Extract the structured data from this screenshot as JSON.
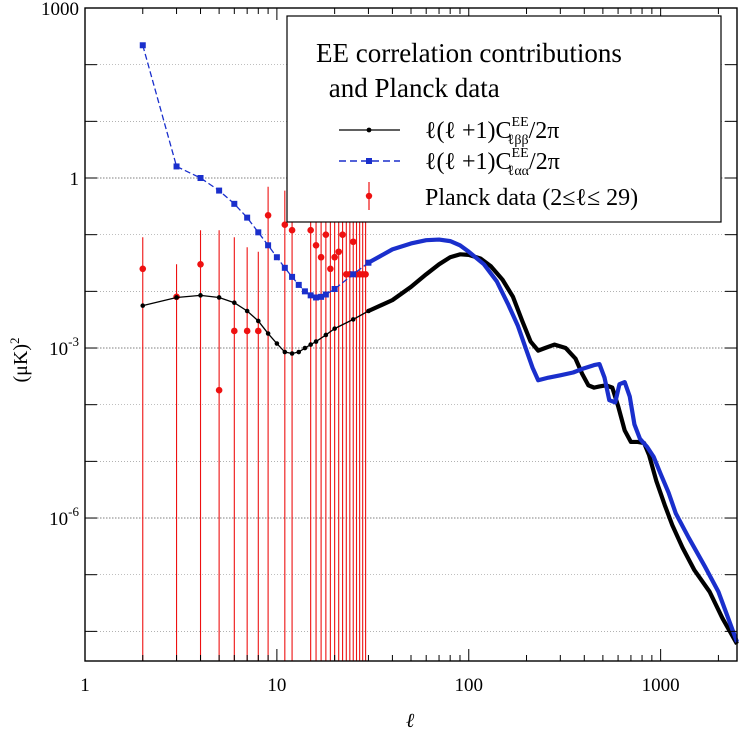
{
  "chart_data": {
    "type": "line",
    "scale": {
      "x": "log",
      "y": "log"
    },
    "xlabel": "ℓ",
    "ylabel": "(μK)",
    "ylabel_sup": "2",
    "xlim": [
      1,
      2500
    ],
    "ylim": [
      3e-09,
      1000
    ],
    "x_ticks": [
      {
        "value": 1,
        "label": "1"
      },
      {
        "value": 10,
        "label": "10"
      },
      {
        "value": 100,
        "label": "100"
      },
      {
        "value": 1000,
        "label": "1000"
      }
    ],
    "y_ticks": [
      {
        "value": 1000,
        "base": "1000",
        "exp": ""
      },
      {
        "value": 1,
        "base": "1",
        "exp": ""
      },
      {
        "value": 0.001,
        "base": "10",
        "exp": "-3"
      },
      {
        "value": 1e-06,
        "base": "10",
        "exp": "-6"
      }
    ],
    "legend": {
      "title_line1": "EE correlation contributions",
      "title_line2": " and Planck data",
      "placement": "top-right",
      "entries": [
        {
          "prefix": "ℓ(ℓ +1)C",
          "sup": "EE",
          "sub": "ℓββ",
          "suffix": "/2π"
        },
        {
          "prefix": "ℓ(ℓ +1)C",
          "sup": "EE",
          "sub": "ℓαα",
          "suffix": "/2π"
        },
        {
          "text": "Planck data (2≤ℓ≤ 29)"
        }
      ]
    },
    "series": [
      {
        "name": "beta-beta contribution",
        "color": "#000000",
        "style": "solid-dots",
        "points": [
          [
            2,
            0.0056
          ],
          [
            3,
            0.0078
          ],
          [
            4,
            0.0085
          ],
          [
            5,
            0.0078
          ],
          [
            6,
            0.0063
          ],
          [
            7,
            0.0045
          ],
          [
            8,
            0.003
          ],
          [
            9,
            0.0018
          ],
          [
            10,
            0.0012
          ],
          [
            11,
            0.00085
          ],
          [
            12,
            0.0008
          ],
          [
            13,
            0.00085
          ],
          [
            14,
            0.001
          ],
          [
            15,
            0.00115
          ],
          [
            16,
            0.0013
          ],
          [
            18,
            0.0017
          ],
          [
            20,
            0.0022
          ],
          [
            25,
            0.0032
          ],
          [
            30,
            0.0045
          ],
          [
            40,
            0.007
          ],
          [
            50,
            0.012
          ],
          [
            60,
            0.02
          ],
          [
            70,
            0.03
          ],
          [
            80,
            0.04
          ],
          [
            90,
            0.045
          ],
          [
            100,
            0.044
          ],
          [
            115,
            0.038
          ],
          [
            130,
            0.028
          ],
          [
            150,
            0.016
          ],
          [
            170,
            0.008
          ],
          [
            190,
            0.003
          ],
          [
            210,
            0.0013
          ],
          [
            230,
            0.0009
          ],
          [
            250,
            0.001
          ],
          [
            280,
            0.00115
          ],
          [
            320,
            0.001
          ],
          [
            360,
            0.00065
          ],
          [
            390,
            0.00035
          ],
          [
            420,
            0.00022
          ],
          [
            450,
            0.0002
          ],
          [
            480,
            0.00021
          ],
          [
            520,
            0.00022
          ],
          [
            560,
            0.0002
          ],
          [
            600,
            9.5e-05
          ],
          [
            650,
            3.5e-05
          ],
          [
            700,
            2.2e-05
          ],
          [
            760,
            2.2e-05
          ],
          [
            820,
            2.1e-05
          ],
          [
            870,
            1.3e-05
          ],
          [
            950,
            4.5e-06
          ],
          [
            1050,
            1.7e-06
          ],
          [
            1150,
            7.5e-07
          ],
          [
            1300,
            3e-07
          ],
          [
            1500,
            1.2e-07
          ],
          [
            1800,
            5e-08
          ],
          [
            2100,
            1.7e-08
          ],
          [
            2500,
            6e-09
          ]
        ]
      },
      {
        "name": "alpha-alpha contribution",
        "color": "#1a2fcc",
        "style": "dashed-squares",
        "points": [
          [
            2,
            220
          ],
          [
            3,
            1.6
          ],
          [
            4,
            1.0
          ],
          [
            5,
            0.6
          ],
          [
            6,
            0.35
          ],
          [
            7,
            0.2
          ],
          [
            8,
            0.11
          ],
          [
            9,
            0.065
          ],
          [
            10,
            0.04
          ],
          [
            11,
            0.026
          ],
          [
            12,
            0.018
          ],
          [
            13,
            0.013
          ],
          [
            14,
            0.01
          ],
          [
            15,
            0.0085
          ],
          [
            16,
            0.0078
          ],
          [
            17,
            0.008
          ],
          [
            18,
            0.0088
          ],
          [
            20,
            0.011
          ],
          [
            25,
            0.02
          ],
          [
            30,
            0.032
          ],
          [
            40,
            0.055
          ],
          [
            50,
            0.07
          ],
          [
            60,
            0.08
          ],
          [
            70,
            0.082
          ],
          [
            80,
            0.077
          ],
          [
            90,
            0.065
          ],
          [
            100,
            0.05
          ],
          [
            120,
            0.03
          ],
          [
            140,
            0.015
          ],
          [
            160,
            0.006
          ],
          [
            180,
            0.0025
          ],
          [
            200,
            0.0009
          ],
          [
            215,
            0.00045
          ],
          [
            230,
            0.00027
          ],
          [
            260,
            0.0003
          ],
          [
            300,
            0.00033
          ],
          [
            350,
            0.00037
          ],
          [
            400,
            0.00044
          ],
          [
            450,
            0.0005
          ],
          [
            480,
            0.00052
          ],
          [
            510,
            0.0003
          ],
          [
            540,
            0.00012
          ],
          [
            580,
            0.00011
          ],
          [
            610,
            0.00023
          ],
          [
            650,
            0.00025
          ],
          [
            690,
            0.00014
          ],
          [
            730,
            4.5e-05
          ],
          [
            780,
            2.5e-05
          ],
          [
            850,
            1.8e-05
          ],
          [
            920,
            1.2e-05
          ],
          [
            1000,
            6e-06
          ],
          [
            1100,
            2.8e-06
          ],
          [
            1200,
            1.2e-06
          ],
          [
            1400,
            4.5e-07
          ],
          [
            1700,
            1.4e-07
          ],
          [
            2000,
            5e-08
          ],
          [
            2500,
            6.5e-09
          ]
        ]
      }
    ],
    "planck": {
      "name": "Planck data (2≤ℓ≤ 29)",
      "color": "#ee1111",
      "y_bottom": 3e-09,
      "points": [
        {
          "l": 2,
          "v": 0.025,
          "hi": 0.09
        },
        {
          "l": 3,
          "v": 0.008,
          "hi": 0.03
        },
        {
          "l": 4,
          "v": 0.03,
          "hi": 0.12
        },
        {
          "l": 5,
          "v": 0.00018,
          "hi": 0.12
        },
        {
          "l": 6,
          "v": 0.002,
          "hi": 0.09
        },
        {
          "l": 7,
          "v": 0.002,
          "hi": 0.06
        },
        {
          "l": 8,
          "v": 0.002,
          "hi": 0.05
        },
        {
          "l": 9,
          "v": 0.22,
          "hi": 0.7
        },
        {
          "l": 11,
          "v": 0.15,
          "hi": 0.6
        },
        {
          "l": 12,
          "v": 0.12,
          "hi": 0.5
        },
        {
          "l": 15,
          "v": 0.12,
          "hi": 0.5
        },
        {
          "l": 16,
          "v": 0.065,
          "hi": 0.5
        },
        {
          "l": 17,
          "v": 0.04,
          "hi": 0.5
        },
        {
          "l": 18,
          "v": 0.1,
          "hi": 0.6
        },
        {
          "l": 19,
          "v": 0.025,
          "hi": 0.5
        },
        {
          "l": 20,
          "v": 0.04,
          "hi": 0.5
        },
        {
          "l": 21,
          "v": 0.05,
          "hi": 0.5
        },
        {
          "l": 22,
          "v": 0.1,
          "hi": 0.6
        },
        {
          "l": 23,
          "v": 0.02,
          "hi": 0.5
        },
        {
          "l": 24,
          "v": 0.02,
          "hi": 0.5
        },
        {
          "l": 25,
          "v": 0.075,
          "hi": 0.5
        },
        {
          "l": 26,
          "v": 0.02,
          "hi": 0.5
        },
        {
          "l": 27,
          "v": 0.02,
          "hi": 0.5
        },
        {
          "l": 28,
          "v": 0.02,
          "hi": 0.5
        },
        {
          "l": 29,
          "v": 0.02,
          "hi": 0.5
        }
      ]
    }
  }
}
